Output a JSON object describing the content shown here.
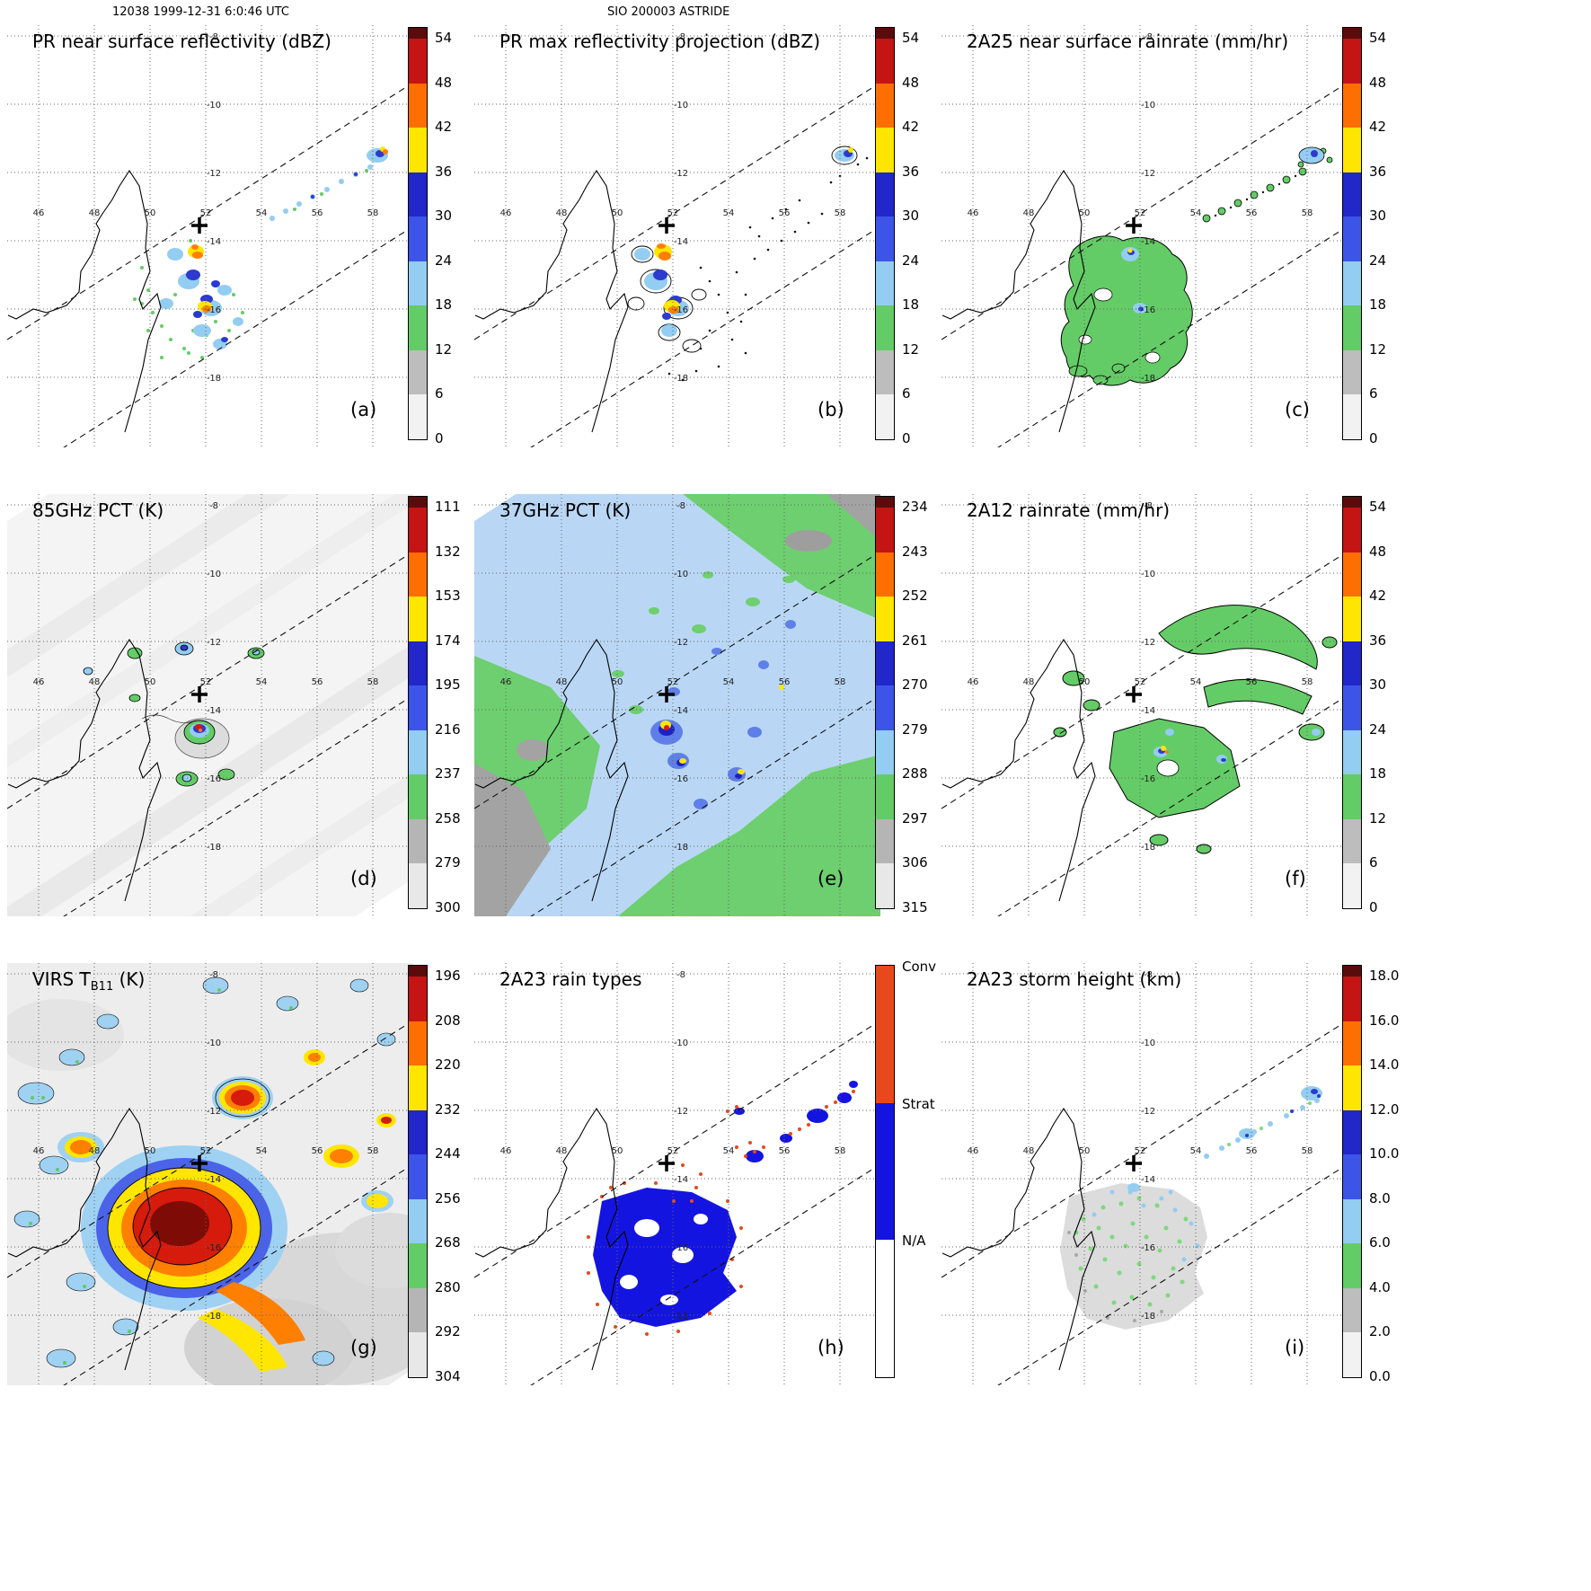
{
  "header": {
    "left": "12038 1999-12-31 6:0:46 UTC",
    "center": "SIO 200003 ASTRIDE"
  },
  "geo": {
    "lon_ticks": [
      "46",
      "48",
      "50",
      "52",
      "54",
      "56",
      "58"
    ],
    "lat_ticks": [
      "-8",
      "-10",
      "-12",
      "-14",
      "-16",
      "-18"
    ]
  },
  "panels": [
    {
      "id": "a",
      "title": "PR near surface reflectivity (dBZ)",
      "letter": "(a)",
      "colorbar": {
        "kind": "seq",
        "cap": "#5a0c0c",
        "colors": [
          "#c41414",
          "#ff6e00",
          "#ffe600",
          "#2127c8",
          "#3c55e8",
          "#93cdf1",
          "#64cc66",
          "#bdbdbd",
          "#f2f2f2"
        ],
        "ticks": [
          "54",
          "48",
          "42",
          "36",
          "30",
          "24",
          "18",
          "12",
          "6",
          "0"
        ]
      }
    },
    {
      "id": "b",
      "title": "PR max reflectivity projection (dBZ)",
      "letter": "(b)",
      "colorbar": {
        "kind": "seq",
        "cap": "#5a0c0c",
        "colors": [
          "#c41414",
          "#ff6e00",
          "#ffe600",
          "#2127c8",
          "#3c55e8",
          "#93cdf1",
          "#64cc66",
          "#bdbdbd",
          "#f2f2f2"
        ],
        "ticks": [
          "54",
          "48",
          "42",
          "36",
          "30",
          "24",
          "18",
          "12",
          "6",
          "0"
        ]
      }
    },
    {
      "id": "c",
      "title": "2A25 near surface rainrate (mm/hr)",
      "letter": "(c)",
      "colorbar": {
        "kind": "seq",
        "cap": "#5a0c0c",
        "colors": [
          "#c41414",
          "#ff6e00",
          "#ffe600",
          "#2127c8",
          "#3c55e8",
          "#93cdf1",
          "#64cc66",
          "#bdbdbd",
          "#f2f2f2"
        ],
        "ticks": [
          "54",
          "48",
          "42",
          "36",
          "30",
          "24",
          "18",
          "12",
          "6",
          "0"
        ]
      }
    },
    {
      "id": "d",
      "title": "85GHz PCT (K)",
      "letter": "(d)",
      "colorbar": {
        "kind": "seq",
        "cap": "#5a0c0c",
        "colors": [
          "#c41414",
          "#ff6e00",
          "#ffe600",
          "#2127c8",
          "#3c55e8",
          "#93cdf1",
          "#64cc66",
          "#b5b5b5",
          "#e8e8e8"
        ],
        "ticks": [
          "111",
          "132",
          "153",
          "174",
          "195",
          "216",
          "237",
          "258",
          "279",
          "300"
        ]
      }
    },
    {
      "id": "e",
      "title": "37GHz PCT (K)",
      "letter": "(e)",
      "colorbar": {
        "kind": "seq",
        "cap": "#5a0c0c",
        "colors": [
          "#c41414",
          "#ff6e00",
          "#ffe600",
          "#2127c8",
          "#3c55e8",
          "#93cdf1",
          "#64cc66",
          "#b5b5b5",
          "#e8e8e8"
        ],
        "ticks": [
          "234",
          "243",
          "252",
          "261",
          "270",
          "279",
          "288",
          "297",
          "306",
          "315"
        ]
      }
    },
    {
      "id": "f",
      "title": "2A12 rainrate (mm/hr)",
      "letter": "(f)",
      "colorbar": {
        "kind": "seq",
        "cap": "#5a0c0c",
        "colors": [
          "#c41414",
          "#ff6e00",
          "#ffe600",
          "#2127c8",
          "#3c55e8",
          "#93cdf1",
          "#64cc66",
          "#bdbdbd",
          "#f2f2f2"
        ],
        "ticks": [
          "54",
          "48",
          "42",
          "36",
          "30",
          "24",
          "18",
          "12",
          "6",
          "0"
        ]
      }
    },
    {
      "id": "g",
      "title": "VIRS TB11 (K)",
      "title_prefix": "VIRS T",
      "title_sub": "B11",
      "title_suffix": " (K)",
      "letter": "(g)",
      "colorbar": {
        "kind": "seq",
        "cap": "#5a0c0c",
        "colors": [
          "#c41414",
          "#ff6e00",
          "#ffe600",
          "#2127c8",
          "#3c55e8",
          "#93cdf1",
          "#64cc66",
          "#b5b5b5",
          "#e8e8e8"
        ],
        "ticks": [
          "196",
          "208",
          "220",
          "232",
          "244",
          "256",
          "268",
          "280",
          "292",
          "304"
        ]
      }
    },
    {
      "id": "h",
      "title": "2A23 rain types",
      "letter": "(h)",
      "colorbar": {
        "kind": "cat",
        "segments": [
          {
            "label": "Conv",
            "color": "#e8491a"
          },
          {
            "label": "Strat",
            "color": "#1414e0"
          },
          {
            "label": "N/A",
            "color": "#ffffff"
          }
        ]
      }
    },
    {
      "id": "i",
      "title": "2A23 storm height (km)",
      "letter": "(i)",
      "colorbar": {
        "kind": "seq",
        "cap": "#5a0c0c",
        "colors": [
          "#c41414",
          "#ff6e00",
          "#ffe600",
          "#2127c8",
          "#3c55e8",
          "#93cdf1",
          "#64cc66",
          "#bdbdbd",
          "#f2f2f2"
        ],
        "ticks": [
          "18.0",
          "16.0",
          "14.0",
          "12.0",
          "10.0",
          "8.0",
          "6.0",
          "4.0",
          "2.0",
          "0.0"
        ]
      }
    }
  ],
  "chart_data": [
    {
      "panel": "(a)",
      "type": "heatmap",
      "title": "PR near surface reflectivity (dBZ)",
      "units": "dBZ",
      "colorbar_ticks": [
        54,
        48,
        42,
        36,
        30,
        24,
        18,
        12,
        6,
        0
      ],
      "x_ticks_lon": [
        46,
        48,
        50,
        52,
        54,
        56,
        58
      ],
      "y_ticks_lat": [
        -8,
        -10,
        -12,
        -14,
        -16,
        -18
      ],
      "annotations": [
        "storm-center cross near 51.8E 13.6S",
        "dashed PR swath edge lines",
        "Madagascar coastline"
      ]
    },
    {
      "panel": "(b)",
      "type": "heatmap",
      "title": "PR max reflectivity projection (dBZ)",
      "units": "dBZ",
      "colorbar_ticks": [
        54,
        48,
        42,
        36,
        30,
        24,
        18,
        12,
        6,
        0
      ]
    },
    {
      "panel": "(c)",
      "type": "heatmap",
      "title": "2A25 near surface rainrate (mm/hr)",
      "units": "mm/hr",
      "colorbar_ticks": [
        54,
        48,
        42,
        36,
        30,
        24,
        18,
        12,
        6,
        0
      ]
    },
    {
      "panel": "(d)",
      "type": "heatmap",
      "title": "85GHz PCT (K)",
      "units": "K",
      "colorbar_ticks": [
        111,
        132,
        153,
        174,
        195,
        216,
        237,
        258,
        279,
        300
      ]
    },
    {
      "panel": "(e)",
      "type": "heatmap",
      "title": "37GHz PCT (K)",
      "units": "K",
      "colorbar_ticks": [
        234,
        243,
        252,
        261,
        270,
        279,
        288,
        297,
        306,
        315
      ]
    },
    {
      "panel": "(f)",
      "type": "heatmap",
      "title": "2A12 rainrate (mm/hr)",
      "units": "mm/hr",
      "colorbar_ticks": [
        54,
        48,
        42,
        36,
        30,
        24,
        18,
        12,
        6,
        0
      ]
    },
    {
      "panel": "(g)",
      "type": "heatmap",
      "title": "VIRS TB11 (K)",
      "units": "K",
      "colorbar_ticks": [
        196,
        208,
        220,
        232,
        244,
        256,
        268,
        280,
        292,
        304
      ]
    },
    {
      "panel": "(h)",
      "type": "heatmap",
      "title": "2A23 rain types",
      "categories": [
        "Conv",
        "Strat",
        "N/A"
      ]
    },
    {
      "panel": "(i)",
      "type": "heatmap",
      "title": "2A23 storm height (km)",
      "units": "km",
      "colorbar_ticks": [
        18.0,
        16.0,
        14.0,
        12.0,
        10.0,
        8.0,
        6.0,
        4.0,
        2.0,
        0.0
      ]
    }
  ]
}
